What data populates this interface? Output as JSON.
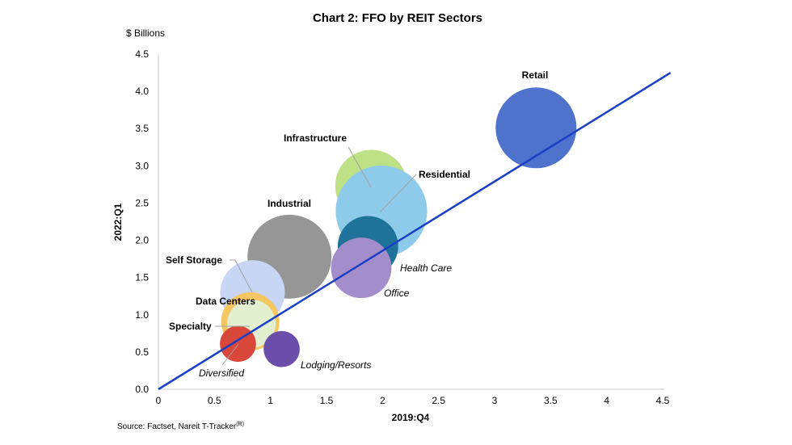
{
  "chart_data": {
    "type": "bubble",
    "title": "Chart 2: FFO by REIT Sectors",
    "unit_label": "$ Billions",
    "xlabel": "2019:Q4",
    "ylabel": "2022:Q1",
    "xlim": [
      0,
      4.5
    ],
    "ylim": [
      0,
      4.5
    ],
    "xticks": [
      "0",
      "0.5",
      "1",
      "1.5",
      "2",
      "2.5",
      "3",
      "3.5",
      "4",
      "4.5"
    ],
    "yticks": [
      "0.0",
      "0.5",
      "1.0",
      "1.5",
      "2.0",
      "2.5",
      "3.0",
      "3.5",
      "4.0",
      "4.5"
    ],
    "grid": false,
    "source": "Source: Factset, Nareit T-Tracker",
    "source_sup": "(R)",
    "reference_line": {
      "from": [
        0,
        0
      ],
      "to": [
        4.57,
        4.25
      ],
      "color": "#1a3fc4"
    },
    "series": [
      {
        "name": "Retail",
        "x": 3.37,
        "y": 3.51,
        "size": 25,
        "color": "#4f72cc",
        "label_style": "bold"
      },
      {
        "name": "Industrial",
        "x": 1.17,
        "y": 1.78,
        "size": 27,
        "color": "#969696",
        "label_style": "bold"
      },
      {
        "name": "Infrastructure",
        "x": 1.9,
        "y": 2.73,
        "size": 20,
        "color": "#bde184",
        "label_style": "bold"
      },
      {
        "name": "Residential",
        "x": 1.99,
        "y": 2.39,
        "size": 32,
        "color": "#8ecbea",
        "label_style": "bold"
      },
      {
        "name": "Health Care",
        "x": 1.87,
        "y": 1.92,
        "size": 14,
        "color": "#1f7299",
        "label_style": "italic"
      },
      {
        "name": "Office",
        "x": 1.81,
        "y": 1.63,
        "size": 14,
        "color": "#a48dcb",
        "label_style": "italic"
      },
      {
        "name": "Self Storage",
        "x": 0.84,
        "y": 1.3,
        "size": 16,
        "color": "#c8d6f5",
        "label_style": "bold"
      },
      {
        "name": "Data Centers",
        "x": 0.82,
        "y": 0.91,
        "size": 13,
        "color": "#f6c662",
        "label_style": "bold"
      },
      {
        "name": "Specialty",
        "x": 0.83,
        "y": 0.88,
        "size": 9,
        "color": "#e2f0d0",
        "label_style": "bold"
      },
      {
        "name": "Diversified",
        "x": 0.71,
        "y": 0.61,
        "size": 5,
        "color": "#d9463a",
        "label_style": "italic"
      },
      {
        "name": "Lodging/Resorts",
        "x": 1.1,
        "y": 0.54,
        "size": 5,
        "color": "#6a4eaa",
        "label_style": "italic"
      }
    ]
  }
}
